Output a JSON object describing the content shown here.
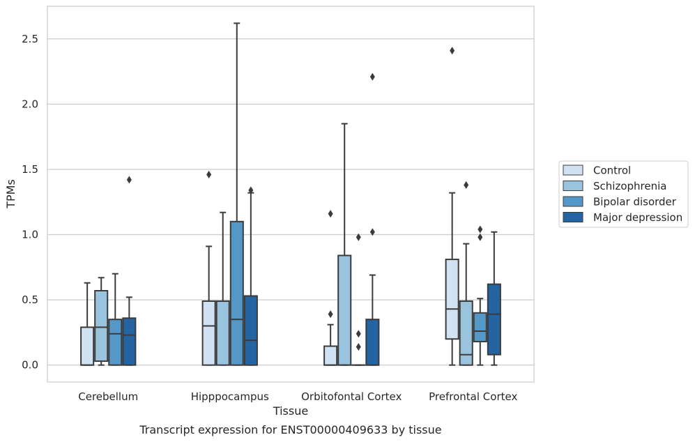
{
  "chart_data": {
    "type": "box",
    "caption": "Transcript expression for ENST00000409633 by tissue",
    "xlabel": "Tissue",
    "ylabel": "TPMs",
    "ylim": [
      -0.13,
      2.75
    ],
    "yticks": [
      0.0,
      0.5,
      1.0,
      1.5,
      2.0,
      2.5
    ],
    "ytick_labels": [
      "0.0",
      "0.5",
      "1.0",
      "1.5",
      "2.0",
      "2.5"
    ],
    "grid": "horizontal",
    "legend_position": "right",
    "categories": [
      "Cerebellum",
      "Hipppocampus",
      "Orbitofontal Cortex",
      "Prefrontal Cortex"
    ],
    "series": [
      {
        "name": "Control",
        "color": "#d1e2f2",
        "boxes": [
          {
            "whislo": 0.0,
            "q1": 0.0,
            "med": 0.0,
            "q3": 0.29,
            "whishi": 0.63,
            "fliers": []
          },
          {
            "whislo": 0.0,
            "q1": 0.0,
            "med": 0.3,
            "q3": 0.49,
            "whishi": 0.91,
            "fliers": [
              1.46
            ]
          },
          {
            "whislo": 0.0,
            "q1": 0.0,
            "med": 0.0,
            "q3": 0.145,
            "whishi": 0.31,
            "fliers": [
              0.39,
              1.16
            ]
          },
          {
            "whislo": 0.0,
            "q1": 0.2,
            "med": 0.43,
            "q3": 0.81,
            "whishi": 1.32,
            "fliers": [
              2.41
            ]
          }
        ]
      },
      {
        "name": "Schizophrenia",
        "color": "#9ac4de",
        "boxes": [
          {
            "whislo": 0.0,
            "q1": 0.03,
            "med": 0.29,
            "q3": 0.57,
            "whishi": 0.67,
            "fliers": []
          },
          {
            "whislo": 0.0,
            "q1": 0.0,
            "med": 0.49,
            "q3": 0.49,
            "whishi": 1.17,
            "fliers": []
          },
          {
            "whislo": 0.0,
            "q1": 0.0,
            "med": 0.0,
            "q3": 0.84,
            "whishi": 1.85,
            "fliers": []
          },
          {
            "whislo": 0.0,
            "q1": 0.0,
            "med": 0.08,
            "q3": 0.49,
            "whishi": 0.93,
            "fliers": [
              1.38
            ]
          }
        ]
      },
      {
        "name": "Bipolar disorder",
        "color": "#5597c7",
        "boxes": [
          {
            "whislo": 0.0,
            "q1": 0.0,
            "med": 0.24,
            "q3": 0.35,
            "whishi": 0.7,
            "fliers": []
          },
          {
            "whislo": 0.0,
            "q1": 0.0,
            "med": 0.35,
            "q3": 1.1,
            "whishi": 2.62,
            "fliers": []
          },
          {
            "whislo": 0.0,
            "q1": 0.0,
            "med": 0.0,
            "q3": 0.0,
            "whishi": 0.0,
            "fliers": [
              0.14,
              0.24,
              0.98
            ]
          },
          {
            "whislo": 0.0,
            "q1": 0.18,
            "med": 0.26,
            "q3": 0.4,
            "whishi": 0.51,
            "fliers": [
              0.98,
              1.04
            ]
          }
        ]
      },
      {
        "name": "Major depression",
        "color": "#2464a2",
        "boxes": [
          {
            "whislo": 0.0,
            "q1": 0.0,
            "med": 0.23,
            "q3": 0.36,
            "whishi": 0.52,
            "fliers": [
              1.42
            ]
          },
          {
            "whislo": 0.0,
            "q1": 0.0,
            "med": 0.19,
            "q3": 0.53,
            "whishi": 1.32,
            "fliers": [
              1.34
            ]
          },
          {
            "whislo": 0.0,
            "q1": 0.0,
            "med": 0.0,
            "q3": 0.35,
            "whishi": 0.69,
            "fliers": [
              1.02,
              2.21
            ]
          },
          {
            "whislo": 0.0,
            "q1": 0.08,
            "med": 0.39,
            "q3": 0.62,
            "whishi": 1.02,
            "fliers": []
          }
        ]
      }
    ]
  }
}
